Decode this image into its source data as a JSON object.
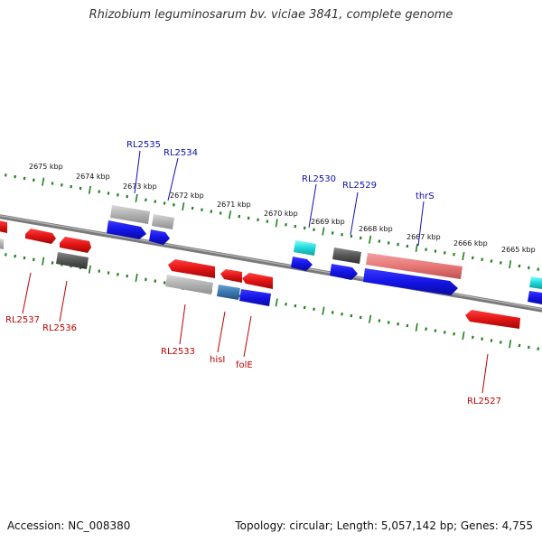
{
  "title": "Rhizobium leguminosarum bv. viciae 3841, complete genome",
  "footer": {
    "accession": "Accession: NC_008380",
    "summary": "Topology: circular; Length: 5,057,142 bp; Genes: 4,755"
  },
  "colors": {
    "forward_gene": "#1414e6",
    "reverse_gene": "#e01414",
    "pseudo_gene": "#a8a8a8",
    "dark_gene": "#555555",
    "rna_gene": "#20d8d8",
    "highlight_gene": "#e87878",
    "hisI_gene": "#3a78b0",
    "tick": "#208020",
    "backbone": "#808080",
    "forward_label": "#1010b0",
    "reverse_label": "#c00000"
  },
  "kbp_labels": [
    "2675 kbp",
    "2674 kbp",
    "2673 kbp",
    "2672 kbp",
    "2671 kbp",
    "2670 kbp",
    "2669 kbp",
    "2668 kbp",
    "2667 kbp",
    "2666 kbp",
    "2665 kbp"
  ],
  "forward_labels": [
    "RL2535",
    "RL2534",
    "RL2530",
    "RL2529",
    "thrS"
  ],
  "reverse_labels": [
    "RL2537",
    "RL2536",
    "RL2533",
    "hisI",
    "folE",
    "RL2527"
  ]
}
